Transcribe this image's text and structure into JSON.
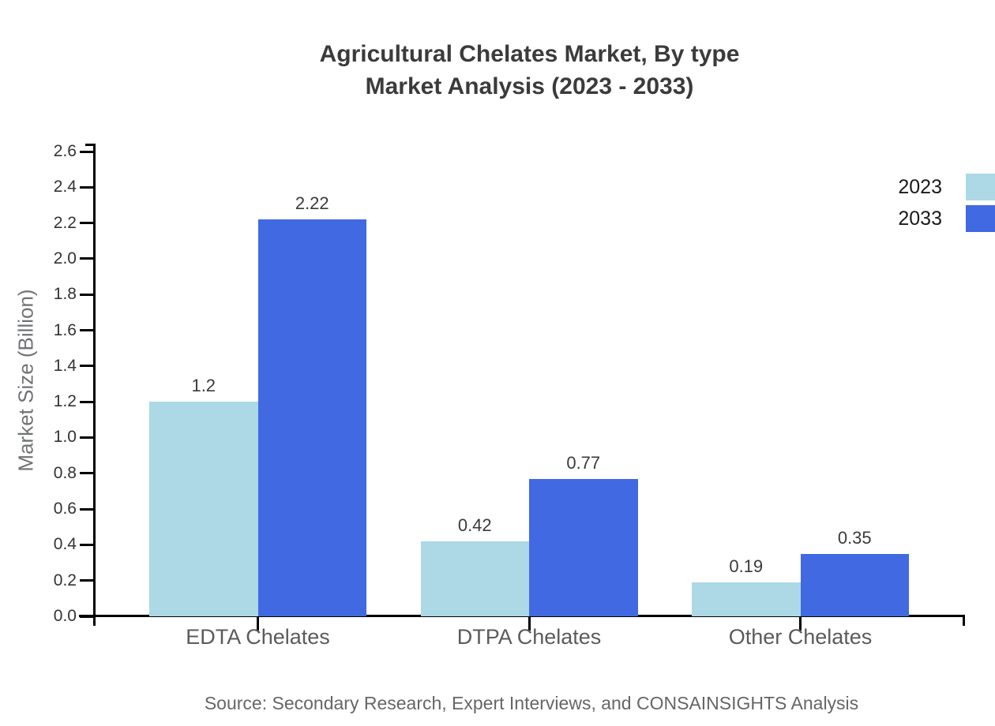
{
  "title": {
    "line1": "Agricultural Chelates Market, By type",
    "line2": "Market Analysis (2023 - 2033)"
  },
  "source": "Source: Secondary Research, Expert Interviews, and CONSAINSIGHTS Analysis",
  "chart_data": {
    "type": "bar",
    "title": "Agricultural Chelates Market, By type Market Analysis (2023 - 2033)",
    "xlabel": "",
    "ylabel": "Market Size (Billion)",
    "categories": [
      "EDTA Chelates",
      "DTPA Chelates",
      "Other Chelates"
    ],
    "series": [
      {
        "name": "2023",
        "color": "#ADD8E6",
        "values": [
          1.2,
          0.42,
          0.19
        ],
        "value_labels": [
          "1.2",
          "0.42",
          "0.19"
        ]
      },
      {
        "name": "2033",
        "color": "#4169E1",
        "values": [
          2.22,
          0.77,
          0.35
        ],
        "value_labels": [
          "2.22",
          "0.77",
          "0.35"
        ]
      }
    ],
    "ylim": [
      0,
      2.6
    ],
    "yticks": [
      "0.0",
      "0.2",
      "0.4",
      "0.6",
      "0.8",
      "1.0",
      "1.2",
      "1.4",
      "1.6",
      "1.8",
      "2.0",
      "2.2",
      "2.4",
      "2.6"
    ],
    "grid": false,
    "legend_position": "upper-right",
    "value_labels_shown": true
  },
  "colors": {
    "series_2023": "#ADD8E6",
    "series_2033": "#4169E1",
    "axis": "#000000",
    "title_text": "#3b3b3b",
    "tick_label_text": "#333333",
    "category_label_text": "#5a5b5d",
    "value_label_text": "#3a3a3a",
    "y_axis_title_text": "#707274",
    "legend_text": "#1a1a1a",
    "source_text": "#666666",
    "background": "#ffffff"
  }
}
